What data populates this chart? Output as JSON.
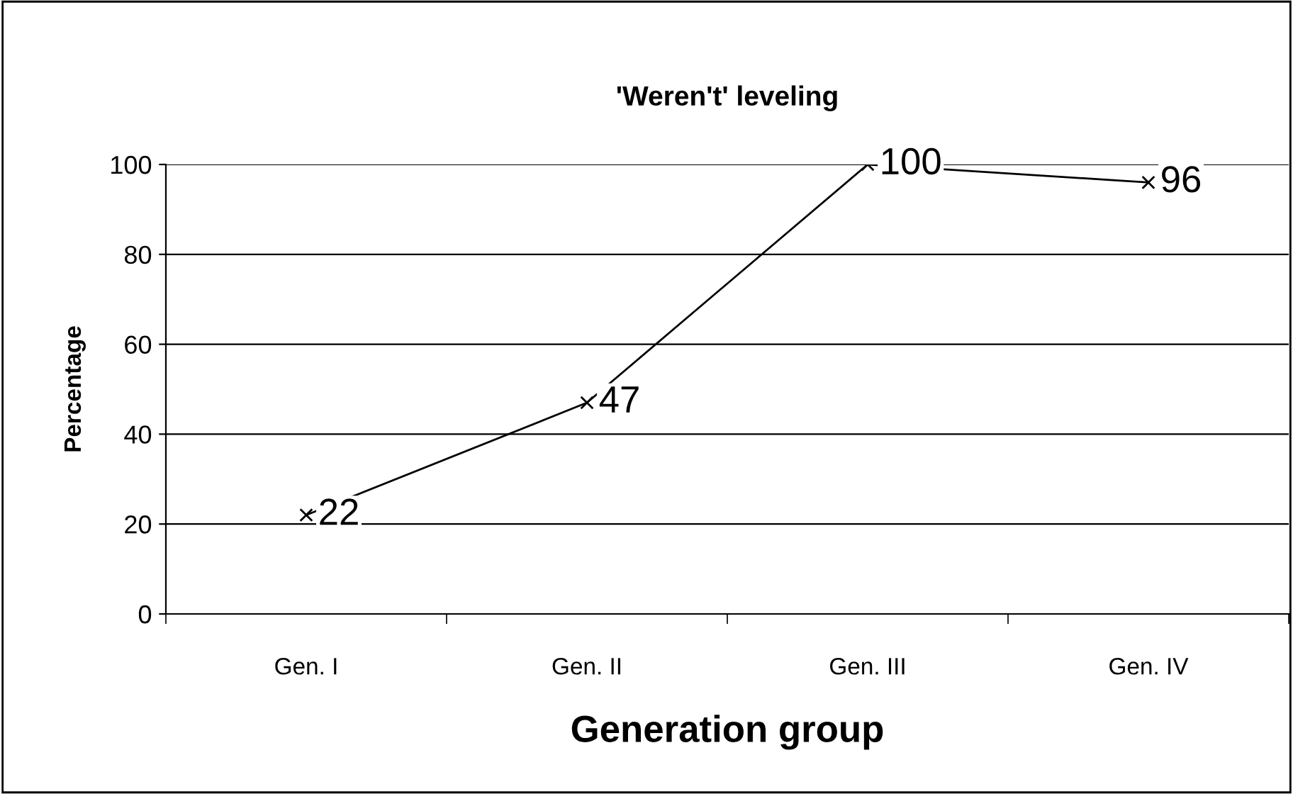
{
  "chart_data": {
    "type": "line",
    "title": "'Weren't' leveling",
    "xlabel": "Generation group",
    "ylabel": "Percentage",
    "categories": [
      "Gen. I",
      "Gen. II",
      "Gen. III",
      "Gen. IV"
    ],
    "series": [
      {
        "color": "#000000",
        "values": [
          22,
          47,
          100,
          96
        ]
      }
    ],
    "ylim": [
      0,
      100
    ],
    "yticks": [
      0,
      20,
      40,
      60,
      80,
      100
    ],
    "grid": "y",
    "marker": "cross",
    "line_style": "solid",
    "data_labels": true,
    "legend": false
  }
}
